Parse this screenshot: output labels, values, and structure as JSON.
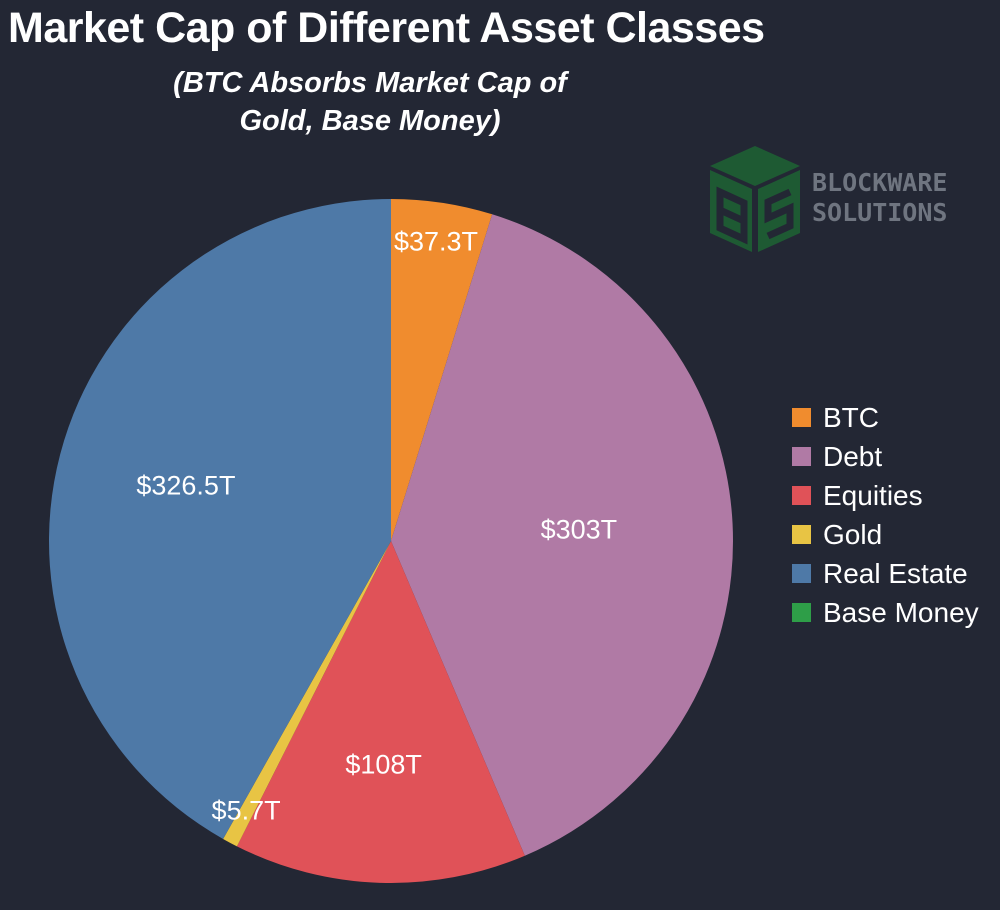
{
  "chart_data": {
    "type": "pie",
    "title": "Market Cap of Different Asset Classes",
    "subtitle": "(BTC Absorbs Market Cap of Gold, Base Money)",
    "legend_position": "right",
    "slices": [
      {
        "name": "BTC",
        "value": 37.3,
        "label": "$37.3T",
        "color": "#f08c2e"
      },
      {
        "name": "Debt",
        "value": 303,
        "label": "$303T",
        "color": "#b07aa5"
      },
      {
        "name": "Equities",
        "value": 108,
        "label": "$108T",
        "color": "#e05258"
      },
      {
        "name": "Gold",
        "value": 5.7,
        "label": "$5.7T",
        "color": "#e8c444"
      },
      {
        "name": "Real Estate",
        "value": 326.5,
        "label": "$326.5T",
        "color": "#4e79a7"
      },
      {
        "name": "Base Money",
        "value": 0,
        "label": "",
        "color": "#2e9e48"
      }
    ]
  },
  "logo": {
    "line1": "BLOCKWARE",
    "line2": "SOLUTIONS",
    "color": "#1e5a33"
  }
}
